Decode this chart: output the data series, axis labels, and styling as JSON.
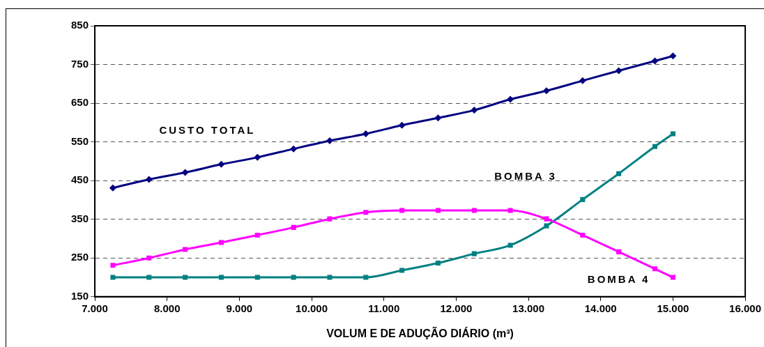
{
  "chart_data": {
    "type": "line",
    "xlabel": "VOLUM E DE ADUÇÃO DIÁRIO (m³)",
    "x": [
      7250,
      7750,
      8250,
      8750,
      9250,
      9750,
      10250,
      10750,
      11250,
      11750,
      12250,
      12750,
      13250,
      13750,
      14250,
      14750,
      15000
    ],
    "series": [
      {
        "name": "CUSTO TOTAL",
        "color": "#000080",
        "marker": "diamond",
        "values": [
          431,
          453,
          471,
          492,
          510,
          532,
          553,
          571,
          593,
          612,
          632,
          660,
          682,
          708,
          734,
          759,
          772
        ]
      },
      {
        "name": "BOMBA 4",
        "color": "#ff00ff",
        "marker": "square",
        "values": [
          231,
          250,
          272,
          290,
          309,
          329,
          351,
          368,
          373,
          373,
          373,
          373,
          351,
          309,
          266,
          222,
          200
        ]
      },
      {
        "name": "BOMBA 3",
        "color": "#008080",
        "marker": "square",
        "values": [
          200,
          200,
          200,
          200,
          200,
          200,
          200,
          200,
          218,
          237,
          261,
          283,
          333,
          401,
          468,
          538,
          571
        ]
      }
    ],
    "xlim": [
      7000,
      16000
    ],
    "xticks": [
      {
        "value": 7000,
        "label": "7.000"
      },
      {
        "value": 8000,
        "label": "8.000"
      },
      {
        "value": 9000,
        "label": "9.000"
      },
      {
        "value": 10000,
        "label": "10.000"
      },
      {
        "value": 11000,
        "label": "11.000"
      },
      {
        "value": 12000,
        "label": "12.000"
      },
      {
        "value": 13000,
        "label": "13.000"
      },
      {
        "value": 14000,
        "label": "14.000"
      },
      {
        "value": 15000,
        "label": "15.000"
      },
      {
        "value": 16000,
        "label": "16.000"
      }
    ],
    "ylim": [
      150,
      850
    ],
    "yticks": [
      150,
      250,
      350,
      450,
      550,
      650,
      750,
      850
    ],
    "grid": "y",
    "legend": false,
    "line_style": "solid"
  }
}
